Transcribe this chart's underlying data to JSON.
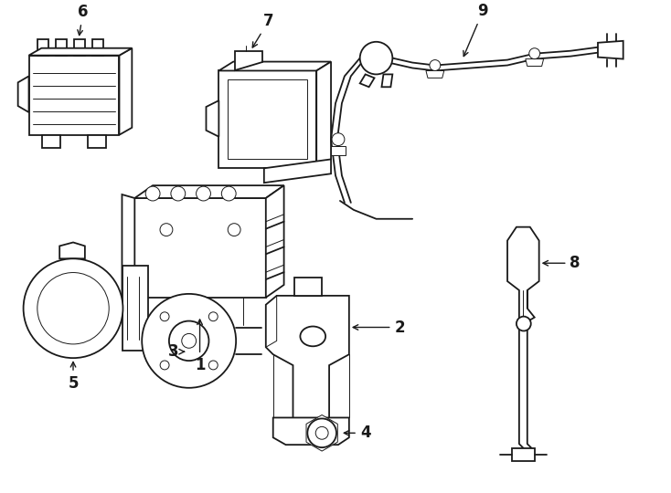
{
  "bg_color": "#ffffff",
  "line_color": "#1a1a1a",
  "lw": 1.3,
  "tlw": 0.7,
  "label_fontsize": 12,
  "fig_width": 7.34,
  "fig_height": 5.4,
  "dpi": 100
}
